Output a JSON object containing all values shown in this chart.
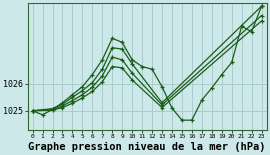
{
  "background_color": "#cce8e8",
  "plot_bg_color": "#cce8e8",
  "grid_color": "#aacccc",
  "line_color": "#1a5c1a",
  "marker_color": "#1a5c1a",
  "xlabel": "Graphe pression niveau de la mer (hPa)",
  "xlabel_fontsize": 7.5,
  "ylim": [
    1024.3,
    1029.0
  ],
  "xlim": [
    -0.5,
    23.5
  ],
  "yticks": [
    1025,
    1026
  ],
  "xticks": [
    0,
    1,
    2,
    3,
    4,
    5,
    6,
    7,
    8,
    9,
    10,
    11,
    12,
    13,
    14,
    15,
    16,
    17,
    18,
    19,
    20,
    21,
    22,
    23
  ],
  "series": [
    {
      "x": [
        0,
        1,
        2,
        3,
        4,
        5,
        6,
        7,
        8,
        9,
        10,
        11,
        12,
        13,
        14,
        15,
        16,
        17,
        18,
        19,
        20,
        21,
        22,
        23
      ],
      "y": [
        1025.0,
        1024.85,
        1025.05,
        1025.3,
        1025.6,
        1025.9,
        1026.35,
        1026.9,
        1027.7,
        1027.55,
        1026.9,
        1026.65,
        1026.55,
        1025.9,
        1025.1,
        1024.65,
        1024.65,
        1025.4,
        1025.85,
        1026.35,
        1026.8,
        1028.15,
        1027.95,
        1028.9
      ]
    },
    {
      "x": [
        0,
        2,
        3,
        4,
        5,
        6,
        7,
        8,
        9,
        10,
        13,
        23
      ],
      "y": [
        1025.0,
        1025.08,
        1025.25,
        1025.5,
        1025.75,
        1026.05,
        1026.55,
        1027.35,
        1027.3,
        1026.75,
        1025.3,
        1028.9
      ]
    },
    {
      "x": [
        0,
        2,
        3,
        4,
        5,
        6,
        7,
        8,
        9,
        10,
        13,
        23
      ],
      "y": [
        1025.0,
        1025.05,
        1025.18,
        1025.38,
        1025.6,
        1025.88,
        1026.3,
        1027.0,
        1026.9,
        1026.4,
        1025.22,
        1028.55
      ]
    },
    {
      "x": [
        0,
        2,
        3,
        4,
        5,
        6,
        7,
        8,
        9,
        10,
        13,
        23
      ],
      "y": [
        1025.0,
        1025.02,
        1025.12,
        1025.28,
        1025.48,
        1025.72,
        1026.08,
        1026.65,
        1026.6,
        1026.15,
        1025.12,
        1028.35
      ]
    }
  ]
}
